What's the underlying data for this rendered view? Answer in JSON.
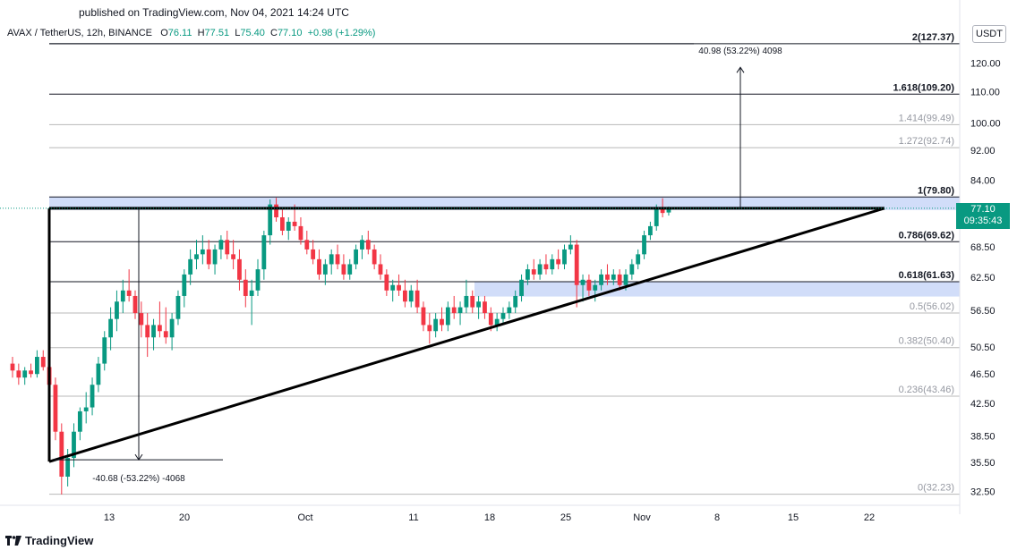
{
  "header": {
    "published": "published on TradingView.com, Nov 04, 2021 14:24 UTC",
    "symbol": "AVAX / TetherUS, 12h, BINANCE",
    "o_label": "O",
    "o_value": "76.11",
    "h_label": "H",
    "h_value": "77.51",
    "l_label": "L",
    "l_value": "75.40",
    "c_label": "C",
    "c_value": "77.10",
    "change": "+0.98 (+1.29%)"
  },
  "unit_label": "USDT",
  "last_price": {
    "price": "77.10",
    "countdown": "09:35:43"
  },
  "brand": "TradingView",
  "colors": {
    "up": "#089981",
    "down": "#f23645",
    "zone": "#c9d7f8",
    "axis_text": "#131722"
  },
  "chart_data": {
    "type": "candlestick",
    "y_scale": "log",
    "ylim": [
      31.5,
      133
    ],
    "x_ticks": [
      "13",
      "20",
      "Oct",
      "11",
      "18",
      "25",
      "Nov",
      "8",
      "15",
      "22"
    ],
    "y_ticks": [
      32.5,
      35.5,
      38.5,
      42.5,
      46.5,
      50.5,
      56.5,
      62.5,
      68.5,
      77.1,
      84.0,
      92.0,
      100.0,
      110.0,
      120.0
    ],
    "y_tick_labels": [
      "32.50",
      "35.50",
      "38.50",
      "42.50",
      "46.50",
      "50.50",
      "56.50",
      "62.50",
      "68.50",
      "",
      "84.00",
      "92.00",
      "100.00",
      "110.00",
      "120.00"
    ],
    "fib_levels": [
      {
        "label": "2(127.37)",
        "value": 127.37,
        "strong": true
      },
      {
        "label": "1.618(109.20)",
        "value": 109.2,
        "strong": true
      },
      {
        "label": "1.414(99.49)",
        "value": 99.49,
        "strong": false
      },
      {
        "label": "1.272(92.74)",
        "value": 92.74,
        "strong": false
      },
      {
        "label": "1(79.80)",
        "value": 79.8,
        "strong": true
      },
      {
        "label": "0.786(69.62)",
        "value": 69.62,
        "strong": true
      },
      {
        "label": "0.618(61.63)",
        "value": 61.63,
        "strong": true
      },
      {
        "label": "0.5(56.02)",
        "value": 56.02,
        "strong": false
      },
      {
        "label": "0.382(50.40)",
        "value": 50.4,
        "strong": false
      },
      {
        "label": "0.236(43.46)",
        "value": 43.46,
        "strong": false
      },
      {
        "label": "0(32.23)",
        "value": 32.23,
        "strong": false
      }
    ],
    "measure_up": "40.98 (53.22%) 4098",
    "measure_down": "-40.68 (-53.22%) -4068",
    "candles": [
      [
        48,
        49,
        46,
        47
      ],
      [
        47,
        48,
        45,
        46
      ],
      [
        46,
        47.5,
        45,
        47
      ],
      [
        47,
        48,
        46,
        46.5
      ],
      [
        46.5,
        50,
        46,
        49
      ],
      [
        49,
        50,
        47,
        47.5
      ],
      [
        47.5,
        48,
        44,
        45
      ],
      [
        45,
        46,
        38,
        39
      ],
      [
        39,
        40,
        32.2,
        34
      ],
      [
        34,
        37,
        33,
        36
      ],
      [
        36,
        40,
        35,
        39
      ],
      [
        39,
        42,
        38,
        41.5
      ],
      [
        41.5,
        44,
        40,
        42
      ],
      [
        42,
        46,
        41,
        45
      ],
      [
        45,
        49,
        44,
        48
      ],
      [
        48,
        53,
        47,
        52
      ],
      [
        52,
        57,
        50,
        55
      ],
      [
        55,
        60,
        53,
        58
      ],
      [
        58,
        62,
        56,
        60
      ],
      [
        60,
        64,
        58,
        59
      ],
      [
        59,
        60,
        55,
        56
      ],
      [
        56,
        58,
        52,
        54
      ],
      [
        54,
        56,
        49,
        52
      ],
      [
        52,
        55,
        50,
        54
      ],
      [
        54,
        58,
        52,
        53
      ],
      [
        53,
        57,
        51,
        52
      ],
      [
        52,
        56,
        50,
        55
      ],
      [
        55,
        60,
        54,
        59
      ],
      [
        59,
        64,
        57,
        63
      ],
      [
        63,
        68,
        61,
        66
      ],
      [
        66,
        70,
        64,
        67
      ],
      [
        67,
        71,
        65,
        68
      ],
      [
        68,
        70,
        64,
        65
      ],
      [
        65,
        69,
        63,
        68
      ],
      [
        68,
        71,
        66,
        70
      ],
      [
        70,
        72,
        66,
        67
      ],
      [
        67,
        70,
        64,
        66
      ],
      [
        66,
        68,
        60,
        62
      ],
      [
        62,
        64,
        57,
        59
      ],
      [
        59,
        62,
        54,
        60
      ],
      [
        60,
        66,
        59,
        64
      ],
      [
        64,
        72,
        62,
        71
      ],
      [
        71,
        79.2,
        69,
        78
      ],
      [
        78,
        79.6,
        74,
        75
      ],
      [
        75,
        77,
        71,
        72
      ],
      [
        72,
        75,
        70,
        74
      ],
      [
        74,
        78,
        72,
        73
      ],
      [
        73,
        75,
        69,
        70
      ],
      [
        70,
        72,
        67,
        68
      ],
      [
        68,
        70,
        65,
        66
      ],
      [
        66,
        68,
        62,
        63
      ],
      [
        63,
        66,
        61,
        65
      ],
      [
        65,
        68,
        63,
        67
      ],
      [
        67,
        69,
        64,
        65
      ],
      [
        65,
        67,
        62,
        63
      ],
      [
        63,
        66,
        62,
        65
      ],
      [
        65,
        69,
        64,
        68
      ],
      [
        68,
        71,
        66,
        70
      ],
      [
        70,
        72,
        67,
        68
      ],
      [
        68,
        69,
        64,
        65
      ],
      [
        65,
        67,
        62,
        63
      ],
      [
        63,
        64,
        59,
        60
      ],
      [
        60,
        62,
        58,
        61
      ],
      [
        61,
        63,
        59,
        60
      ],
      [
        60,
        62,
        57,
        58
      ],
      [
        58,
        61,
        57,
        60
      ],
      [
        60,
        62,
        56,
        57
      ],
      [
        57,
        58,
        53,
        54
      ],
      [
        54,
        56,
        51,
        53
      ],
      [
        53,
        56,
        52,
        55
      ],
      [
        55,
        57,
        53,
        54
      ],
      [
        54,
        58,
        53,
        57
      ],
      [
        57,
        59,
        55,
        56
      ],
      [
        56,
        58,
        54,
        57
      ],
      [
        57,
        62,
        56,
        59
      ],
      [
        59,
        60,
        56,
        57
      ],
      [
        57,
        59,
        55,
        58
      ],
      [
        58,
        59,
        55,
        56
      ],
      [
        56,
        57,
        53,
        54
      ],
      [
        54,
        56,
        53,
        55
      ],
      [
        55,
        57,
        54,
        56
      ],
      [
        56,
        58,
        55,
        57
      ],
      [
        57,
        60,
        56,
        59
      ],
      [
        59,
        63,
        58,
        62
      ],
      [
        62,
        65,
        61,
        64
      ],
      [
        64,
        66,
        62,
        63
      ],
      [
        63,
        66,
        62,
        65
      ],
      [
        65,
        67,
        63,
        64
      ],
      [
        64,
        67,
        63,
        66
      ],
      [
        66,
        68,
        64,
        65
      ],
      [
        65,
        69,
        64,
        68
      ],
      [
        68,
        71,
        67,
        69
      ],
      [
        69,
        70,
        57,
        61
      ],
      [
        61,
        63,
        58,
        62
      ],
      [
        62,
        63,
        59,
        60
      ],
      [
        60,
        62,
        58,
        61
      ],
      [
        61,
        64,
        60,
        63
      ],
      [
        63,
        65,
        61,
        62
      ],
      [
        62,
        64,
        61,
        63
      ],
      [
        63,
        64,
        60,
        61
      ],
      [
        61,
        64,
        60,
        63
      ],
      [
        63,
        66,
        62,
        65
      ],
      [
        65,
        68,
        64,
        67
      ],
      [
        67,
        72,
        66,
        71
      ],
      [
        71,
        74,
        70,
        73
      ],
      [
        73,
        78,
        72,
        77
      ],
      [
        77,
        79.5,
        75,
        76
      ],
      [
        76.11,
        77.51,
        75.4,
        77.1
      ]
    ]
  }
}
